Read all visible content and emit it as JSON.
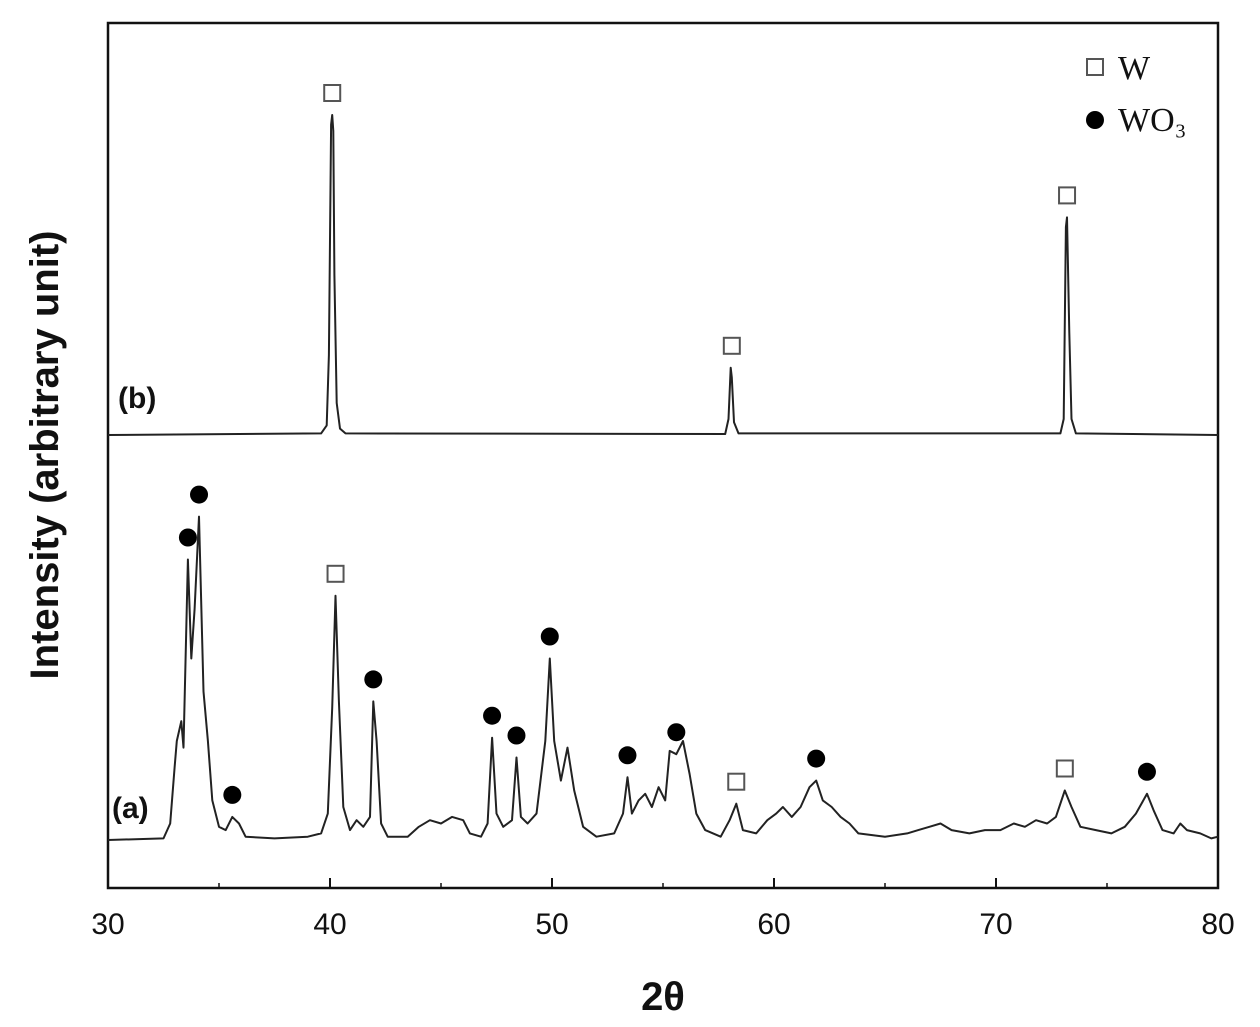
{
  "chart_data": {
    "type": "line",
    "xlabel": "2θ",
    "ylabel": "Intensity (arbitrary unit)",
    "xlim": [
      30,
      80
    ],
    "x_ticks": [
      30,
      40,
      50,
      60,
      70,
      80
    ],
    "grid": false,
    "legend": {
      "placement": "top-right",
      "entries": [
        {
          "marker": "open-square",
          "label": "W"
        },
        {
          "marker": "filled-circle",
          "label": "WO₃"
        }
      ]
    },
    "series": [
      {
        "name": "(b)",
        "baseline": 0,
        "points": [
          [
            30,
            0
          ],
          [
            39.6,
            0.005
          ],
          [
            39.85,
            0.03
          ],
          [
            39.95,
            0.25
          ],
          [
            40.05,
            0.97
          ],
          [
            40.1,
            1.0
          ],
          [
            40.15,
            0.95
          ],
          [
            40.2,
            0.5
          ],
          [
            40.3,
            0.1
          ],
          [
            40.45,
            0.02
          ],
          [
            40.7,
            0.005
          ],
          [
            57.8,
            0.003
          ],
          [
            57.95,
            0.05
          ],
          [
            58.05,
            0.21
          ],
          [
            58.1,
            0.18
          ],
          [
            58.2,
            0.04
          ],
          [
            58.4,
            0.005
          ],
          [
            72.9,
            0.005
          ],
          [
            73.05,
            0.05
          ],
          [
            73.15,
            0.65
          ],
          [
            73.2,
            0.68
          ],
          [
            73.3,
            0.32
          ],
          [
            73.4,
            0.05
          ],
          [
            73.6,
            0.005
          ],
          [
            80,
            0
          ]
        ],
        "peaks": [
          {
            "x": 40.1,
            "y": 1.0,
            "phase": "W"
          },
          {
            "x": 58.1,
            "y": 0.21,
            "phase": "W"
          },
          {
            "x": 73.2,
            "y": 0.68,
            "phase": "W"
          }
        ]
      },
      {
        "name": "(a)",
        "baseline": 0,
        "points": [
          [
            30,
            0
          ],
          [
            32.5,
            0.005
          ],
          [
            32.8,
            0.05
          ],
          [
            33.0,
            0.22
          ],
          [
            33.1,
            0.3
          ],
          [
            33.3,
            0.36
          ],
          [
            33.4,
            0.28
          ],
          [
            33.6,
            0.85
          ],
          [
            33.75,
            0.55
          ],
          [
            33.9,
            0.7
          ],
          [
            34.1,
            0.98
          ],
          [
            34.3,
            0.45
          ],
          [
            34.5,
            0.3
          ],
          [
            34.7,
            0.12
          ],
          [
            35.0,
            0.04
          ],
          [
            35.3,
            0.03
          ],
          [
            35.6,
            0.07
          ],
          [
            35.9,
            0.05
          ],
          [
            36.2,
            0.01
          ],
          [
            37.5,
            0.005
          ],
          [
            39.0,
            0.01
          ],
          [
            39.6,
            0.02
          ],
          [
            39.9,
            0.08
          ],
          [
            40.1,
            0.4
          ],
          [
            40.25,
            0.74
          ],
          [
            40.4,
            0.42
          ],
          [
            40.6,
            0.1
          ],
          [
            40.9,
            0.03
          ],
          [
            41.2,
            0.06
          ],
          [
            41.5,
            0.04
          ],
          [
            41.8,
            0.07
          ],
          [
            41.95,
            0.42
          ],
          [
            42.1,
            0.3
          ],
          [
            42.3,
            0.05
          ],
          [
            42.6,
            0.01
          ],
          [
            43.5,
            0.01
          ],
          [
            44.0,
            0.04
          ],
          [
            44.5,
            0.06
          ],
          [
            45.0,
            0.05
          ],
          [
            45.5,
            0.07
          ],
          [
            46.0,
            0.06
          ],
          [
            46.3,
            0.02
          ],
          [
            46.8,
            0.01
          ],
          [
            47.1,
            0.05
          ],
          [
            47.3,
            0.31
          ],
          [
            47.5,
            0.08
          ],
          [
            47.8,
            0.04
          ],
          [
            48.2,
            0.06
          ],
          [
            48.4,
            0.25
          ],
          [
            48.6,
            0.07
          ],
          [
            48.9,
            0.05
          ],
          [
            49.3,
            0.08
          ],
          [
            49.7,
            0.3
          ],
          [
            49.9,
            0.55
          ],
          [
            50.1,
            0.3
          ],
          [
            50.4,
            0.18
          ],
          [
            50.7,
            0.28
          ],
          [
            51.0,
            0.15
          ],
          [
            51.4,
            0.04
          ],
          [
            52.0,
            0.01
          ],
          [
            52.8,
            0.02
          ],
          [
            53.2,
            0.08
          ],
          [
            53.4,
            0.19
          ],
          [
            53.6,
            0.08
          ],
          [
            53.9,
            0.12
          ],
          [
            54.2,
            0.14
          ],
          [
            54.5,
            0.1
          ],
          [
            54.8,
            0.16
          ],
          [
            55.1,
            0.12
          ],
          [
            55.3,
            0.27
          ],
          [
            55.6,
            0.26
          ],
          [
            55.9,
            0.3
          ],
          [
            56.2,
            0.2
          ],
          [
            56.5,
            0.08
          ],
          [
            56.9,
            0.03
          ],
          [
            57.6,
            0.01
          ],
          [
            58.0,
            0.06
          ],
          [
            58.3,
            0.11
          ],
          [
            58.6,
            0.03
          ],
          [
            59.2,
            0.02
          ],
          [
            59.7,
            0.06
          ],
          [
            60.1,
            0.08
          ],
          [
            60.4,
            0.1
          ],
          [
            60.8,
            0.07
          ],
          [
            61.2,
            0.1
          ],
          [
            61.6,
            0.16
          ],
          [
            61.9,
            0.18
          ],
          [
            62.2,
            0.12
          ],
          [
            62.6,
            0.1
          ],
          [
            63.0,
            0.07
          ],
          [
            63.4,
            0.05
          ],
          [
            63.8,
            0.02
          ],
          [
            65.0,
            0.01
          ],
          [
            66.0,
            0.02
          ],
          [
            66.5,
            0.03
          ],
          [
            67.0,
            0.04
          ],
          [
            67.5,
            0.05
          ],
          [
            68.0,
            0.03
          ],
          [
            68.8,
            0.02
          ],
          [
            69.5,
            0.03
          ],
          [
            70.2,
            0.03
          ],
          [
            70.8,
            0.05
          ],
          [
            71.3,
            0.04
          ],
          [
            71.8,
            0.06
          ],
          [
            72.3,
            0.05
          ],
          [
            72.7,
            0.07
          ],
          [
            73.1,
            0.15
          ],
          [
            73.4,
            0.1
          ],
          [
            73.8,
            0.04
          ],
          [
            74.5,
            0.03
          ],
          [
            75.2,
            0.02
          ],
          [
            75.8,
            0.04
          ],
          [
            76.3,
            0.08
          ],
          [
            76.8,
            0.14
          ],
          [
            77.1,
            0.09
          ],
          [
            77.5,
            0.03
          ],
          [
            78.0,
            0.02
          ],
          [
            78.3,
            0.05
          ],
          [
            78.6,
            0.03
          ],
          [
            79.2,
            0.02
          ],
          [
            79.7,
            0.005
          ],
          [
            80,
            0.01
          ]
        ],
        "peaks": [
          {
            "x": 33.6,
            "y": 0.85,
            "phase": "WO₃"
          },
          {
            "x": 34.1,
            "y": 0.98,
            "phase": "WO₃"
          },
          {
            "x": 35.6,
            "y": 0.07,
            "phase": "WO₃"
          },
          {
            "x": 40.25,
            "y": 0.74,
            "phase": "W"
          },
          {
            "x": 41.95,
            "y": 0.42,
            "phase": "WO₃"
          },
          {
            "x": 47.3,
            "y": 0.31,
            "phase": "WO₃"
          },
          {
            "x": 48.4,
            "y": 0.25,
            "phase": "WO₃"
          },
          {
            "x": 49.9,
            "y": 0.55,
            "phase": "WO₃"
          },
          {
            "x": 53.4,
            "y": 0.19,
            "phase": "WO₃"
          },
          {
            "x": 55.6,
            "y": 0.26,
            "phase": "WO₃"
          },
          {
            "x": 58.3,
            "y": 0.11,
            "phase": "W"
          },
          {
            "x": 61.9,
            "y": 0.18,
            "phase": "WO₃"
          },
          {
            "x": 73.1,
            "y": 0.15,
            "phase": "W"
          },
          {
            "x": 76.8,
            "y": 0.14,
            "phase": "WO₃"
          }
        ]
      }
    ]
  }
}
